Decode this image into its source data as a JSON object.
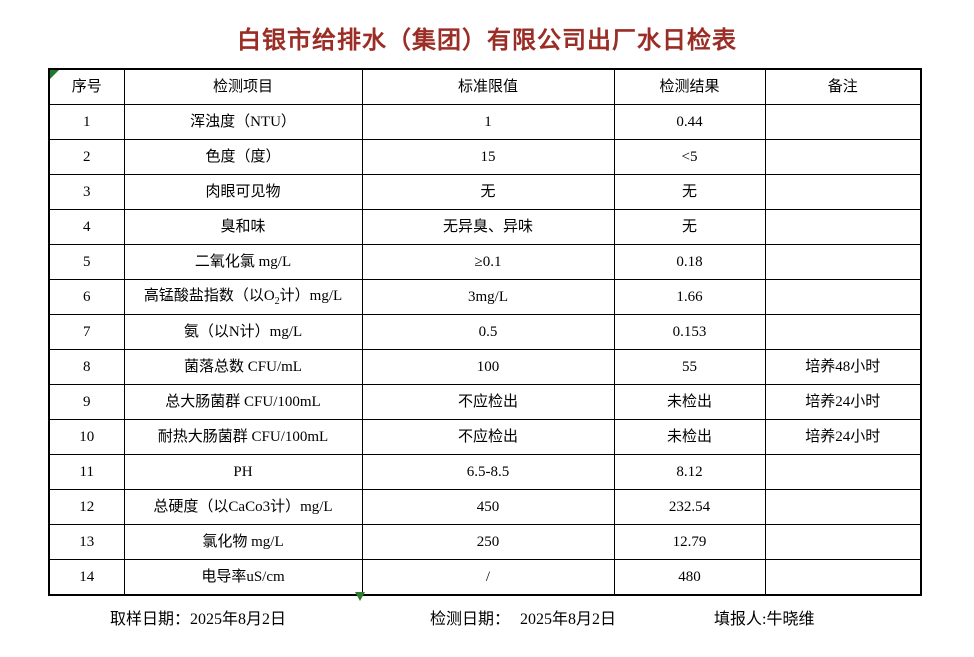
{
  "title": "白银市给排水（集团）有限公司出厂水日检表",
  "colors": {
    "title_text": "#9a2d25",
    "table_border": "#000000",
    "marker_green": "#2e7d32",
    "background": "#ffffff"
  },
  "table": {
    "headers": [
      "序号",
      "检测项目",
      "标准限值",
      "检测结果",
      "备注"
    ],
    "rows": [
      {
        "no": "1",
        "item": "浑浊度（NTU）",
        "limit": "1",
        "result": "0.44",
        "note": ""
      },
      {
        "no": "2",
        "item": "色度（度）",
        "limit": "15",
        "result": "<5",
        "note": ""
      },
      {
        "no": "3",
        "item": "肉眼可见物",
        "limit": "无",
        "result": "无",
        "note": ""
      },
      {
        "no": "4",
        "item": "臭和味",
        "limit": "无异臭、异味",
        "result": "无",
        "note": ""
      },
      {
        "no": "5",
        "item": "二氧化氯 mg/L",
        "limit": "≥0.1",
        "result": "0.18",
        "note": ""
      },
      {
        "no": "6",
        "item_pre": "高锰酸盐指数（以O",
        "item_sub": "2",
        "item_post": "计）mg/L",
        "limit": "3mg/L",
        "result": "1.66",
        "note": ""
      },
      {
        "no": "7",
        "item": "氨（以N计）mg/L",
        "limit": "0.5",
        "result": "0.153",
        "note": ""
      },
      {
        "no": "8",
        "item": "菌落总数 CFU/mL",
        "limit": "100",
        "result": "55",
        "note": "培养48小时"
      },
      {
        "no": "9",
        "item": "总大肠菌群 CFU/100mL",
        "limit": "不应检出",
        "result": "未检出",
        "note": "培养24小时"
      },
      {
        "no": "10",
        "item": "耐热大肠菌群 CFU/100mL",
        "limit": "不应检出",
        "result": "未检出",
        "note": "培养24小时"
      },
      {
        "no": "11",
        "item": "PH",
        "limit": "6.5-8.5",
        "result": "8.12",
        "note": ""
      },
      {
        "no": "12",
        "item": "总硬度（以CaCo3计）mg/L",
        "limit": "450",
        "result": "232.54",
        "note": ""
      },
      {
        "no": "13",
        "item": "氯化物 mg/L",
        "limit": "250",
        "result": "12.79",
        "note": ""
      },
      {
        "no": "14",
        "item": "电导率uS/cm",
        "limit": "/",
        "result": "480",
        "note": ""
      }
    ]
  },
  "footer": {
    "sampling": {
      "label": "取样日期：",
      "value": "2025年8月2日"
    },
    "testing": {
      "label": "检测日期：",
      "value": "2025年8月2日"
    },
    "reporter": {
      "label": "填报人:",
      "value": "牛晓维"
    }
  }
}
